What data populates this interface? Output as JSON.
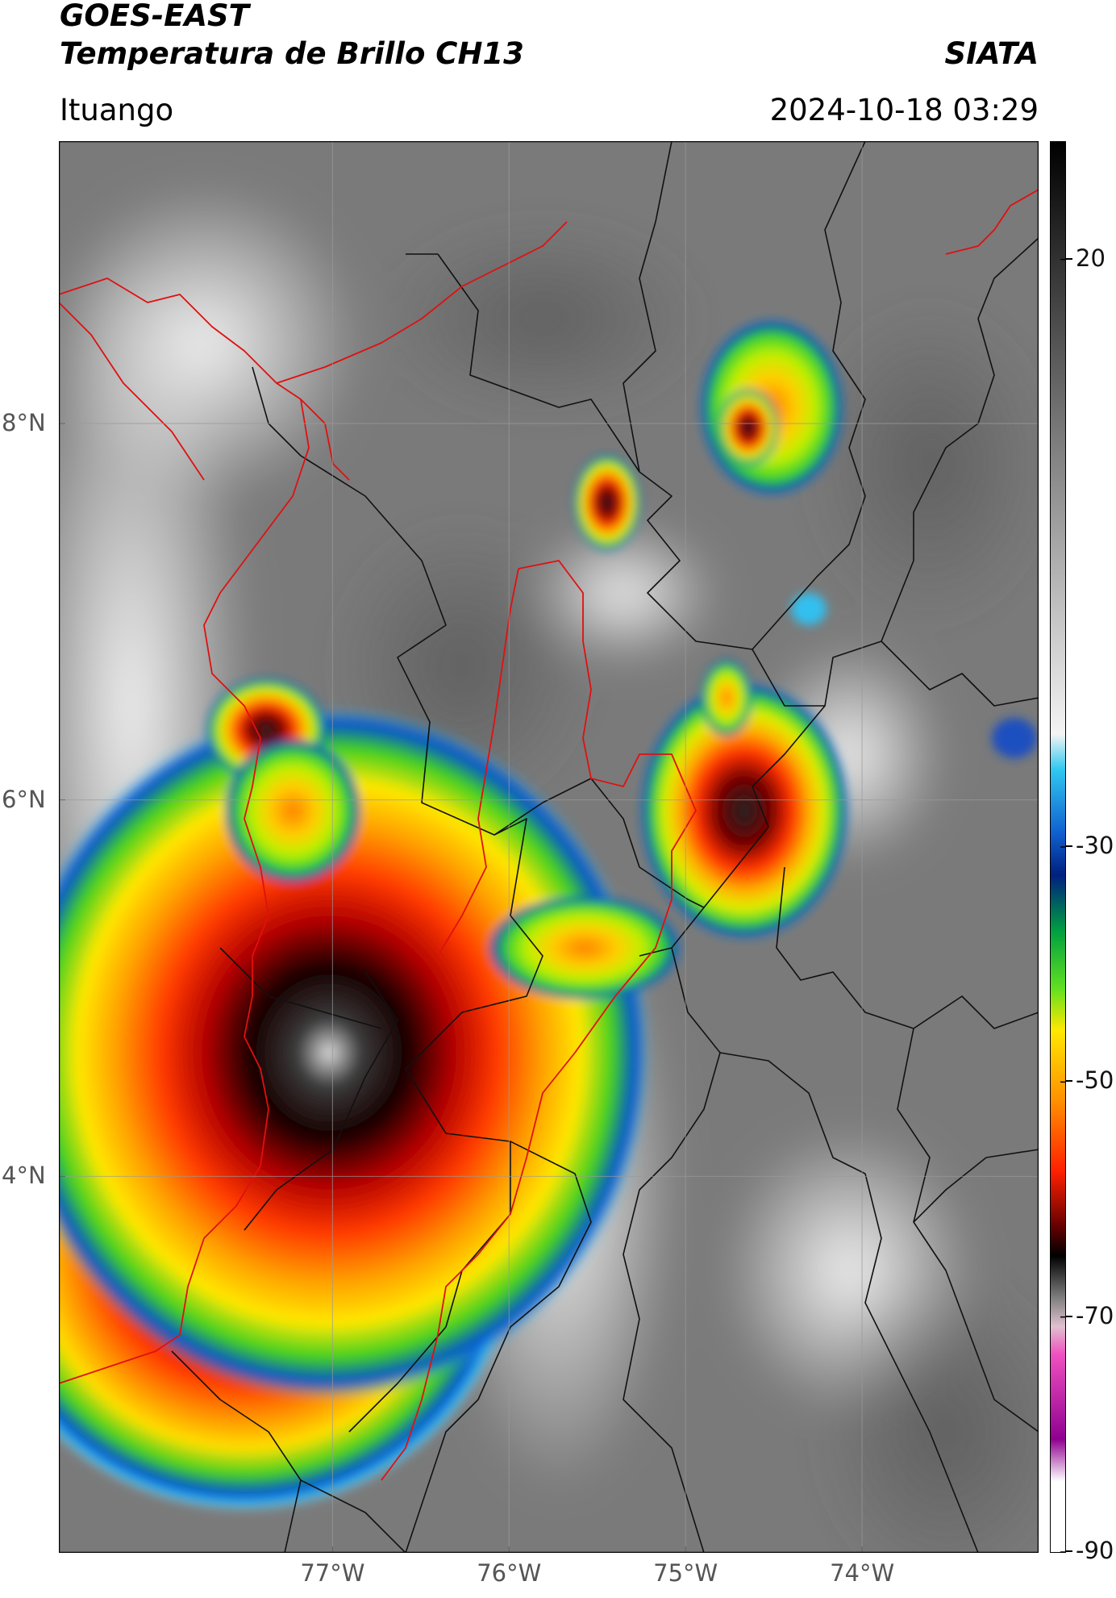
{
  "header": {
    "satellite": "GOES-EAST",
    "product": "Temperatura de Brillo CH13",
    "source": "SIATA",
    "region": "Ituango",
    "datetime": "2024-10-18 03:29"
  },
  "map": {
    "lon_range": [
      -78.55,
      -73.0
    ],
    "lat_range": [
      2.0,
      9.5
    ],
    "lon_ticks": [
      {
        "value": -77,
        "label": "77°W"
      },
      {
        "value": -76,
        "label": "76°W"
      },
      {
        "value": -75,
        "label": "75°W"
      },
      {
        "value": -74,
        "label": "74°W"
      }
    ],
    "lat_ticks": [
      {
        "value": 8,
        "label": "8°N"
      },
      {
        "value": 6,
        "label": "6°N"
      },
      {
        "value": 4,
        "label": "4°N"
      }
    ],
    "colors": {
      "background_cloud": "#7a7a7a",
      "coastline_and_basin": "#e01010",
      "admin_boundaries": "#111111",
      "gridlines": "#9a9a9a"
    },
    "storm_cells": [
      {
        "name": "southwest-main",
        "lon": -77.8,
        "lat": 3.4,
        "min_temp": -82
      },
      {
        "name": "central-main",
        "lon": -76.8,
        "lat": 4.5,
        "min_temp": -75
      },
      {
        "name": "northwest-small",
        "lon": -77.4,
        "lat": 6.1,
        "min_temp": -70
      },
      {
        "name": "east-cell",
        "lon": -74.95,
        "lat": 5.65,
        "min_temp": -70
      },
      {
        "name": "central-small",
        "lon": -75.55,
        "lat": 4.9,
        "min_temp": -55
      },
      {
        "name": "north-small",
        "lon": -75.45,
        "lat": 7.5,
        "min_temp": -70
      },
      {
        "name": "northeast-cell",
        "lon": -74.6,
        "lat": 7.9,
        "min_temp": -62
      }
    ]
  },
  "colorbar": {
    "vmin": -90,
    "vmax": 30,
    "ticks": [
      {
        "value": 20,
        "label": "20"
      },
      {
        "value": -30,
        "label": "-30"
      },
      {
        "value": -50,
        "label": "-50"
      },
      {
        "value": -70,
        "label": "-70"
      },
      {
        "value": -90,
        "label": "-90"
      }
    ]
  }
}
